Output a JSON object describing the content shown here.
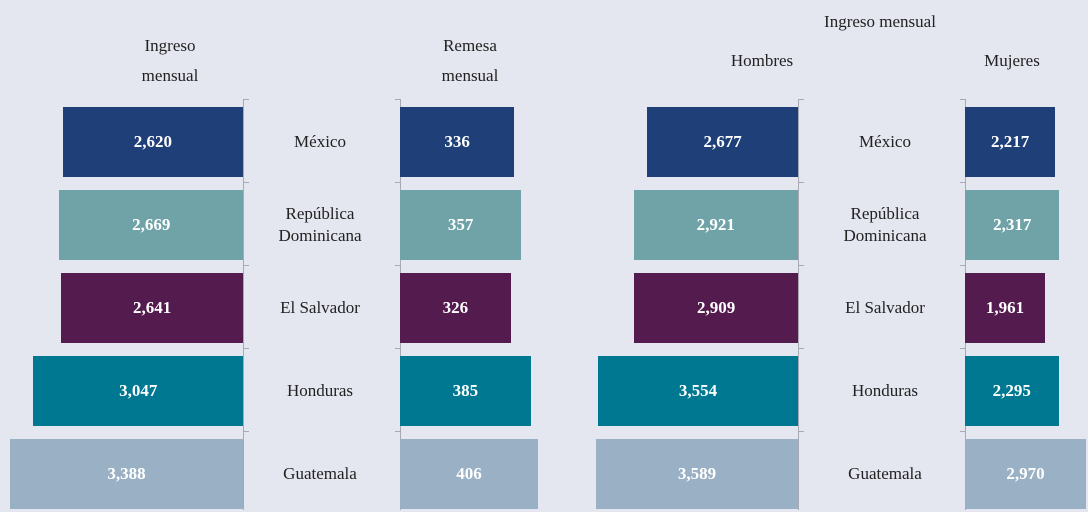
{
  "chart_data": [
    {
      "type": "bar",
      "categories": [
        "México",
        "República Dominicana",
        "El Salvador",
        "Honduras",
        "Guatemala"
      ],
      "colors": [
        "#1f3f78",
        "#6fa3a8",
        "#541c4e",
        "#007891",
        "#9ab0c4"
      ],
      "series": [
        {
          "name": "Ingreso mensual",
          "values": [
            2620,
            2669,
            2641,
            3047,
            3388
          ],
          "value_labels": [
            "2,620",
            "2,669",
            "2,641",
            "3,047",
            "3,388"
          ]
        },
        {
          "name": "Remesa mensual",
          "values": [
            336,
            357,
            326,
            385,
            406
          ]
        }
      ]
    },
    {
      "type": "bar",
      "title": "Ingreso mensual",
      "categories": [
        "México",
        "República Dominicana",
        "El Salvador",
        "Honduras",
        "Guatemala"
      ],
      "colors": [
        "#1f3f78",
        "#6fa3a8",
        "#541c4e",
        "#007891",
        "#9ab0c4"
      ],
      "series": [
        {
          "name": "Hombres",
          "values": [
            2677,
            2921,
            2909,
            3554,
            3589
          ],
          "value_labels": [
            "2,677",
            "2,921",
            "2,909",
            "3,554",
            "3,589"
          ]
        },
        {
          "name": "Mujeres",
          "values": [
            2217,
            2317,
            1961,
            2295,
            2970
          ],
          "value_labels": [
            "2,217",
            "2,317",
            "1,961",
            "2,295",
            "2,970"
          ]
        }
      ]
    }
  ]
}
